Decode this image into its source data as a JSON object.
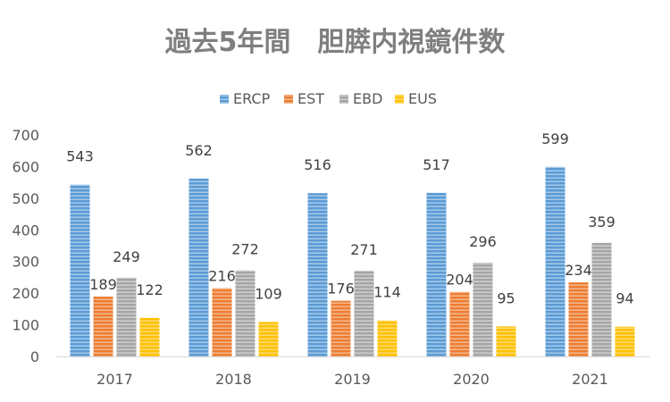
{
  "chart_data": {
    "type": "bar",
    "title": "過去5年間　胆膵内視鏡件数",
    "categories": [
      "2017",
      "2018",
      "2019",
      "2020",
      "2021"
    ],
    "series": [
      {
        "name": "ERCP",
        "values": [
          543,
          562,
          516,
          517,
          599
        ],
        "color": "#5b9bd5"
      },
      {
        "name": "EST",
        "values": [
          189,
          216,
          176,
          204,
          234
        ],
        "color": "#ed7d31"
      },
      {
        "name": "EBD",
        "values": [
          249,
          272,
          271,
          296,
          359
        ],
        "color": "#a5a5a5"
      },
      {
        "name": "EUS",
        "values": [
          122,
          109,
          114,
          95,
          94
        ],
        "color": "#ffc000"
      }
    ],
    "ylim": [
      0,
      700
    ],
    "yticks": [
      0,
      100,
      200,
      300,
      400,
      500,
      600,
      700
    ],
    "grid": false,
    "legend_position": "top",
    "bar_pattern": "horizontal-stripes",
    "data_labels": true
  }
}
